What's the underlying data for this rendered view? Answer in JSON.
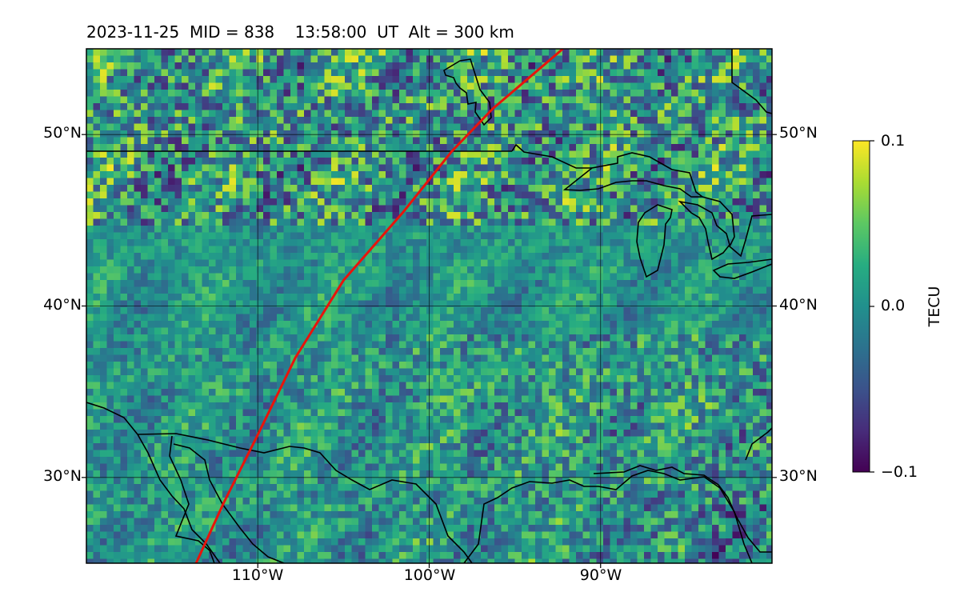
{
  "title": "2023-11-25  MID = 838    13:58:00  UT  Alt = 300 km",
  "map": {
    "lon_range": [
      -120,
      -80
    ],
    "lat_range": [
      25,
      55
    ],
    "lat_ticks": [
      {
        "value": 30,
        "label": "30°N"
      },
      {
        "value": 40,
        "label": "40°N"
      },
      {
        "value": 50,
        "label": "50°N"
      }
    ],
    "lon_ticks": [
      {
        "value": -110,
        "label": "110°W"
      },
      {
        "value": -100,
        "label": "100°W"
      },
      {
        "value": -90,
        "label": "90°W"
      }
    ],
    "satellite_track": {
      "color": "#e8140c",
      "points": [
        [
          -113.6,
          25
        ],
        [
          -112.0,
          28.5
        ],
        [
          -110.0,
          32.5
        ],
        [
          -107.8,
          37
        ],
        [
          -105.0,
          41.5
        ],
        [
          -101.5,
          45.5
        ],
        [
          -98.7,
          49
        ],
        [
          -96.3,
          51.5
        ],
        [
          -92.2,
          55
        ]
      ]
    },
    "coastline_color": "#000000"
  },
  "colorbar": {
    "label": "TECU",
    "min": -0.1,
    "max": 0.1,
    "ticks": [
      {
        "value": 0.1,
        "label": "0.1"
      },
      {
        "value": 0.0,
        "label": "0.0"
      },
      {
        "value": -0.1,
        "label": "−0.1"
      }
    ],
    "colormap": "viridis"
  }
}
